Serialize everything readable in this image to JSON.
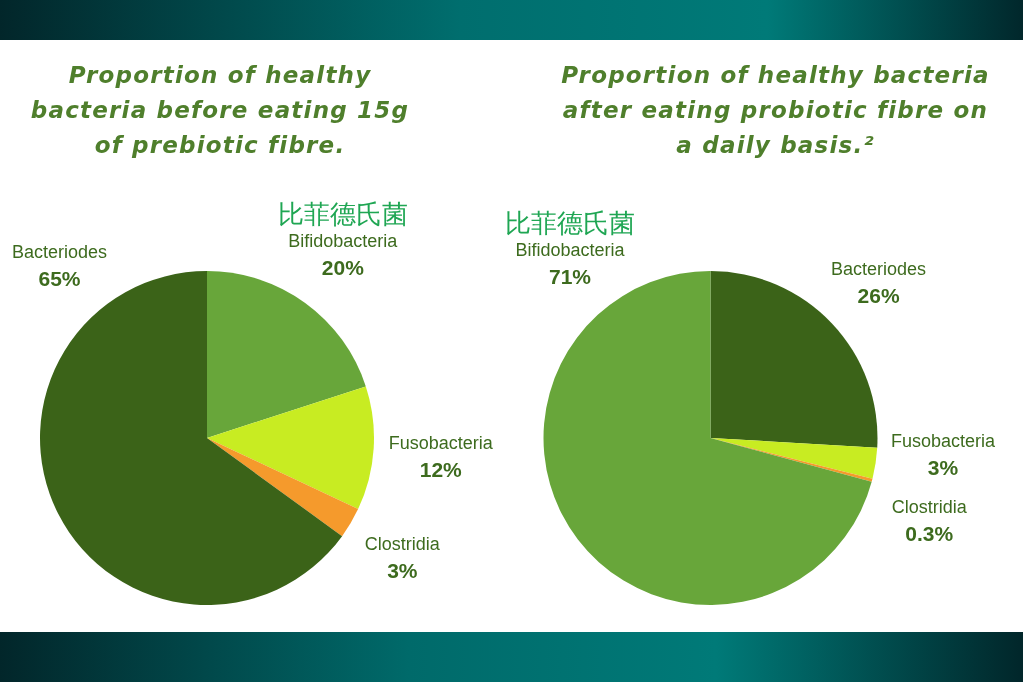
{
  "chart_data": [
    {
      "type": "pie",
      "title": "Proportion of healthy bacteria before eating 15g of prebiotic fibre.",
      "categories": [
        "Bifidobacteria",
        "Fusobacteria",
        "Clostridia",
        "Bacteriodes"
      ],
      "values": [
        20,
        12,
        3,
        65
      ],
      "colors": [
        "#68a63a",
        "#c8ec22",
        "#f59a2c",
        "#3b6318"
      ],
      "value_labels": [
        "20%",
        "12%",
        "3%",
        "65%"
      ],
      "annotations": [
        {
          "text": "比菲德氏菌",
          "x": "Bifidobacteria"
        }
      ]
    },
    {
      "type": "pie",
      "title": "Proportion of healthy bacteria after eating probiotic fibre on a daily basis.²",
      "categories": [
        "Bacteriodes",
        "Fusobacteria",
        "Clostridia",
        "Bifidobacteria"
      ],
      "values": [
        26,
        3,
        0.3,
        71
      ],
      "colors": [
        "#3b6318",
        "#c8ec22",
        "#f59a2c",
        "#68a63a"
      ],
      "value_labels": [
        "26%",
        "3%",
        "0.3%",
        "71%"
      ],
      "annotations": [
        {
          "text": "比菲德氏菌",
          "x": "Bifidobacteria"
        }
      ]
    }
  ]
}
